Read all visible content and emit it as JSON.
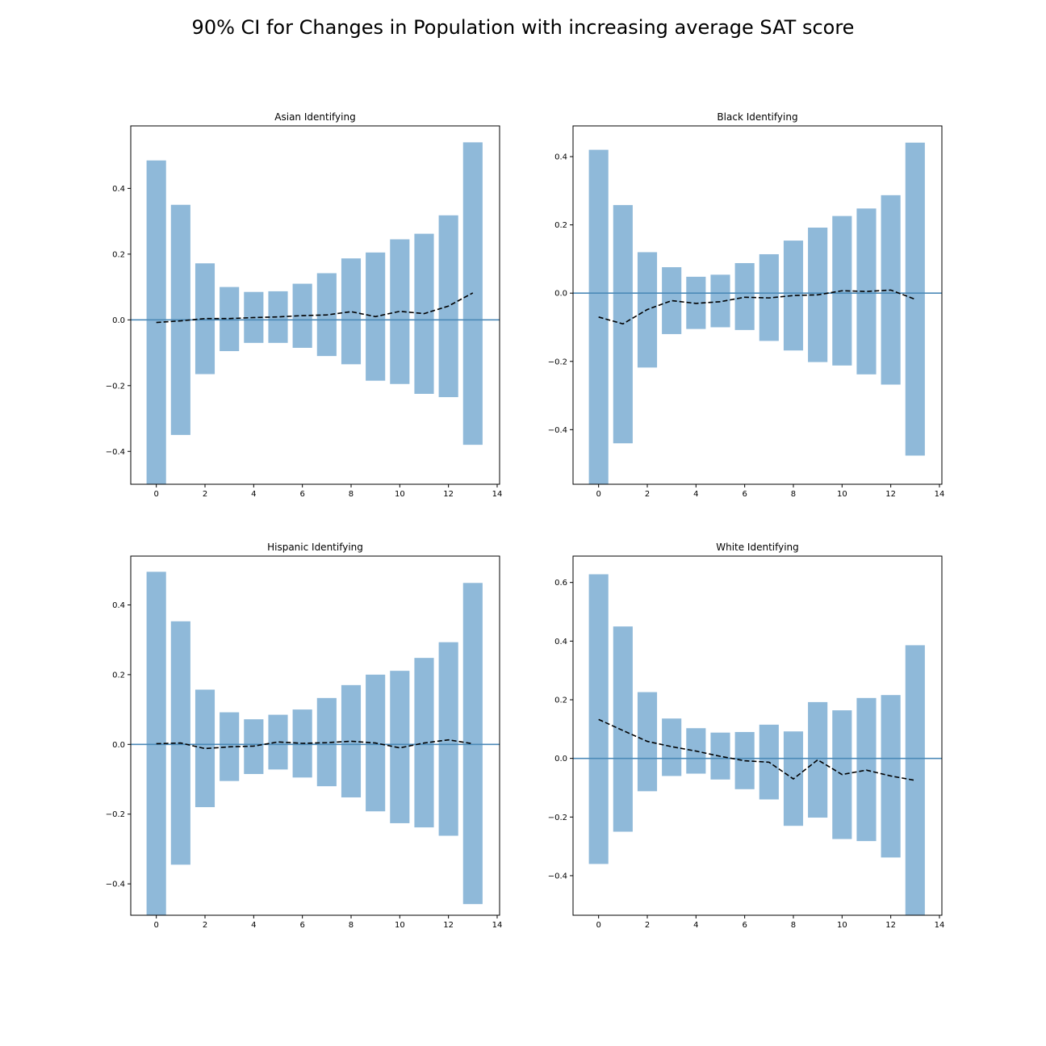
{
  "title": "90% CI for Changes in Population with increasing average SAT score",
  "chart_data": [
    {
      "type": "bar",
      "title": "Asian Identifying",
      "x": [
        0,
        1,
        2,
        3,
        4,
        5,
        6,
        7,
        8,
        9,
        10,
        11,
        12,
        13
      ],
      "ci_low": [
        -0.5,
        -0.35,
        -0.165,
        -0.095,
        -0.07,
        -0.07,
        -0.085,
        -0.11,
        -0.135,
        -0.185,
        -0.195,
        -0.225,
        -0.235,
        -0.38
      ],
      "ci_high": [
        0.485,
        0.35,
        0.172,
        0.1,
        0.085,
        0.087,
        0.11,
        0.142,
        0.187,
        0.205,
        0.245,
        0.262,
        0.318,
        0.54
      ],
      "mean": [
        -0.008,
        -0.003,
        0.004,
        0.004,
        0.007,
        0.009,
        0.013,
        0.015,
        0.025,
        0.01,
        0.026,
        0.019,
        0.042,
        0.082
      ],
      "reference_line": 0,
      "xlim": [
        -1.05,
        14.1
      ],
      "ylim": [
        -0.5,
        0.59
      ],
      "xticks": [
        0,
        2,
        4,
        6,
        8,
        10,
        12,
        14
      ],
      "yticks": [
        -0.4,
        -0.2,
        0.0,
        0.2,
        0.4
      ],
      "ytick_labels": [
        "−0.4",
        "−0.2",
        "0.0",
        "0.2",
        "0.4"
      ],
      "grid": false,
      "bar_color": "#8fb9d9",
      "mean_line_color": "#000000",
      "reference_line_color": "#4c8ab8"
    },
    {
      "type": "bar",
      "title": "Black Identifying",
      "x": [
        0,
        1,
        2,
        3,
        4,
        5,
        6,
        7,
        8,
        9,
        10,
        11,
        12,
        13
      ],
      "ci_low": [
        -0.56,
        -0.44,
        -0.218,
        -0.12,
        -0.105,
        -0.1,
        -0.108,
        -0.14,
        -0.168,
        -0.202,
        -0.212,
        -0.238,
        -0.268,
        -0.476
      ],
      "ci_high": [
        0.42,
        0.258,
        0.12,
        0.076,
        0.048,
        0.054,
        0.088,
        0.114,
        0.154,
        0.192,
        0.226,
        0.248,
        0.287,
        0.441
      ],
      "mean": [
        -0.07,
        -0.09,
        -0.048,
        -0.022,
        -0.03,
        -0.025,
        -0.012,
        -0.014,
        -0.007,
        -0.005,
        0.007,
        0.005,
        0.009,
        -0.018
      ],
      "reference_line": 0,
      "xlim": [
        -1.05,
        14.1
      ],
      "ylim": [
        -0.56,
        0.49
      ],
      "xticks": [
        0,
        2,
        4,
        6,
        8,
        10,
        12,
        14
      ],
      "yticks": [
        -0.4,
        -0.2,
        0.0,
        0.2,
        0.4
      ],
      "ytick_labels": [
        "−0.4",
        "−0.2",
        "0.0",
        "0.2",
        "0.4"
      ],
      "grid": false,
      "bar_color": "#8fb9d9",
      "mean_line_color": "#000000",
      "reference_line_color": "#4c8ab8"
    },
    {
      "type": "bar",
      "title": "Hispanic Identifying",
      "x": [
        0,
        1,
        2,
        3,
        4,
        5,
        6,
        7,
        8,
        9,
        10,
        11,
        12,
        13
      ],
      "ci_low": [
        -0.49,
        -0.345,
        -0.18,
        -0.105,
        -0.085,
        -0.072,
        -0.095,
        -0.12,
        -0.152,
        -0.192,
        -0.226,
        -0.238,
        -0.262,
        -0.458
      ],
      "ci_high": [
        0.495,
        0.353,
        0.157,
        0.092,
        0.072,
        0.085,
        0.1,
        0.133,
        0.17,
        0.2,
        0.211,
        0.248,
        0.293,
        0.463
      ],
      "mean": [
        0.002,
        0.004,
        -0.012,
        -0.007,
        -0.005,
        0.007,
        0.003,
        0.005,
        0.009,
        0.004,
        -0.01,
        0.004,
        0.013,
        0.002
      ],
      "reference_line": 0,
      "xlim": [
        -1.05,
        14.1
      ],
      "ylim": [
        -0.49,
        0.54
      ],
      "xticks": [
        0,
        2,
        4,
        6,
        8,
        10,
        12,
        14
      ],
      "yticks": [
        -0.4,
        -0.2,
        0.0,
        0.2,
        0.4
      ],
      "ytick_labels": [
        "−0.4",
        "−0.2",
        "0.0",
        "0.2",
        "0.4"
      ],
      "grid": false,
      "bar_color": "#8fb9d9",
      "mean_line_color": "#000000",
      "reference_line_color": "#4c8ab8"
    },
    {
      "type": "bar",
      "title": "White Identifying",
      "x": [
        0,
        1,
        2,
        3,
        4,
        5,
        6,
        7,
        8,
        9,
        10,
        11,
        12,
        13
      ],
      "ci_low": [
        -0.36,
        -0.25,
        -0.112,
        -0.06,
        -0.052,
        -0.072,
        -0.105,
        -0.14,
        -0.23,
        -0.202,
        -0.275,
        -0.282,
        -0.338,
        -0.535
      ],
      "ci_high": [
        0.628,
        0.45,
        0.226,
        0.136,
        0.103,
        0.088,
        0.09,
        0.115,
        0.092,
        0.192,
        0.164,
        0.206,
        0.216,
        0.386
      ],
      "mean": [
        0.133,
        0.095,
        0.058,
        0.04,
        0.025,
        0.007,
        -0.008,
        -0.013,
        -0.07,
        -0.005,
        -0.055,
        -0.04,
        -0.06,
        -0.075
      ],
      "reference_line": 0,
      "xlim": [
        -1.05,
        14.1
      ],
      "ylim": [
        -0.535,
        0.69
      ],
      "xticks": [
        0,
        2,
        4,
        6,
        8,
        10,
        12,
        14
      ],
      "yticks": [
        -0.4,
        -0.2,
        0.0,
        0.2,
        0.4,
        0.6
      ],
      "ytick_labels": [
        "−0.4",
        "−0.2",
        "0.0",
        "0.2",
        "0.4",
        "0.6"
      ],
      "grid": false,
      "bar_color": "#8fb9d9",
      "mean_line_color": "#000000",
      "reference_line_color": "#4c8ab8"
    }
  ]
}
